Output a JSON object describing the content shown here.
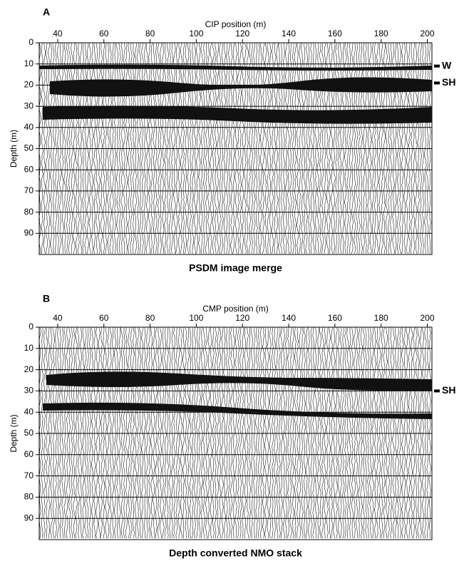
{
  "chart_data": [
    {
      "type": "seismic",
      "panel_label": "A",
      "title": "PSDM image merge",
      "x_label": "CIP position (m)",
      "y_label": "Depth (m)",
      "xlim": [
        32,
        202
      ],
      "xticks": [
        40,
        60,
        80,
        100,
        120,
        140,
        160,
        180,
        200
      ],
      "ylim": [
        0,
        100
      ],
      "yticks": [
        0,
        10,
        20,
        30,
        40,
        50,
        60,
        70,
        80,
        90
      ],
      "grid": true,
      "annotations": [
        {
          "text": "W",
          "y": 11
        },
        {
          "text": "SH",
          "y": 19
        }
      ]
    },
    {
      "type": "seismic",
      "panel_label": "B",
      "title": "Depth converted NMO stack",
      "x_label": "CMP position (m)",
      "y_label": "Depth (m)",
      "xlim": [
        32,
        202
      ],
      "xticks": [
        40,
        60,
        80,
        100,
        120,
        140,
        160,
        180,
        200
      ],
      "ylim": [
        0,
        100
      ],
      "yticks": [
        0,
        10,
        20,
        30,
        40,
        50,
        60,
        70,
        80,
        90
      ],
      "grid": true,
      "annotations": [
        {
          "text": "SH",
          "y": 30
        }
      ]
    }
  ]
}
